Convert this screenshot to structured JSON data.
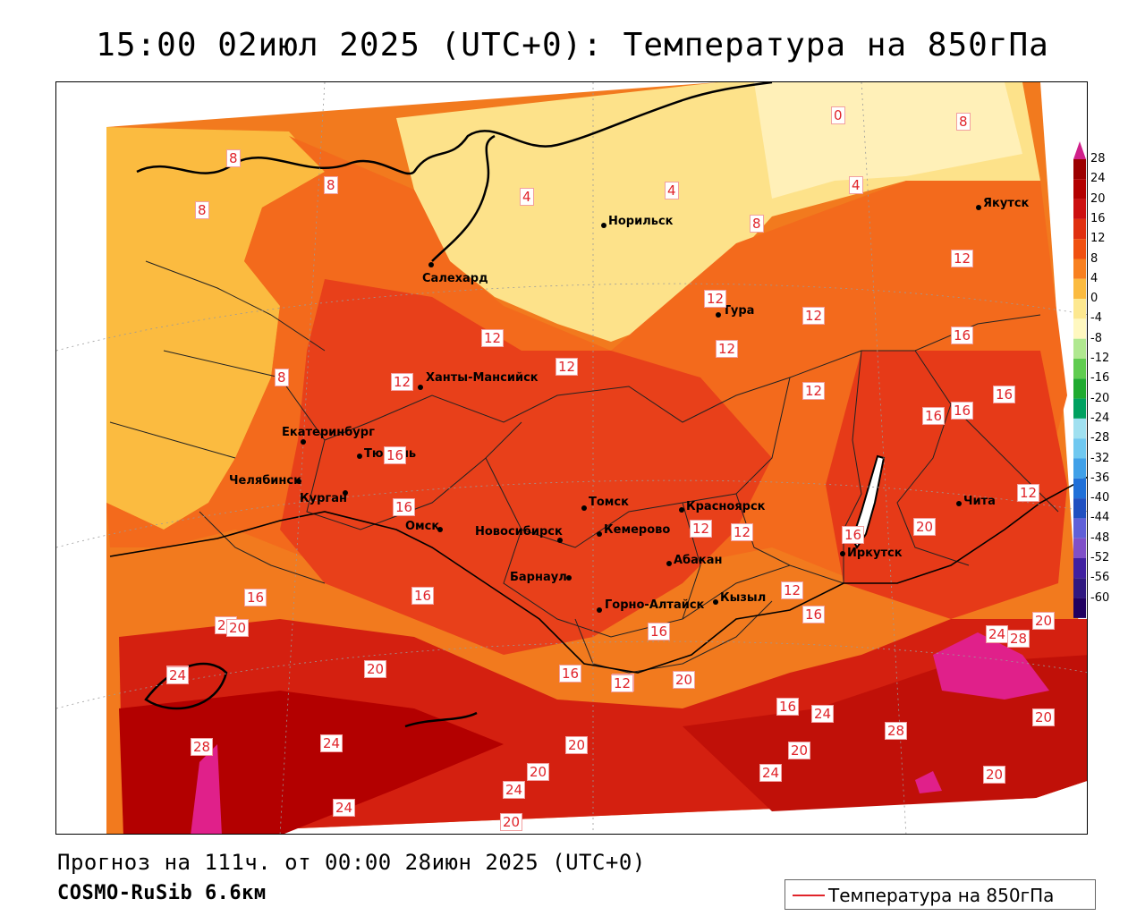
{
  "title": "15:00 02июл 2025 (UTC+0): Температура на 850гПа",
  "footer": {
    "forecast": "Прогноз на 111ч. от 00:00 28июн 2025 (UTC+0)",
    "model": "COSMO-RuSib 6.6км"
  },
  "legend": {
    "label": "Температура на 850гПа",
    "line_color": "#e0242a"
  },
  "colorbar": {
    "levels": [
      "28",
      "24",
      "20",
      "16",
      "12",
      "8",
      "4",
      "0",
      "-4",
      "-8",
      "-12",
      "-16",
      "-20",
      "-24",
      "-28",
      "-32",
      "-36",
      "-40",
      "-44",
      "-48",
      "-52",
      "-56",
      "-60"
    ],
    "colors": [
      "#9c0000",
      "#b30000",
      "#cc1010",
      "#e03010",
      "#f05010",
      "#f88020",
      "#fbbb40",
      "#fde890",
      "#fff8c0",
      "#b0e890",
      "#60cc50",
      "#20aa30",
      "#00a060",
      "#a0e0f0",
      "#70c8f0",
      "#40a0e8",
      "#2070d8",
      "#2050c0",
      "#6060d8",
      "#8050c8",
      "#4020a0",
      "#301880",
      "#200060"
    ],
    "top_color": "#d0208a"
  },
  "cities": [
    {
      "name": "Норильск"
    },
    {
      "name": "Якутск"
    },
    {
      "name": "Салехард"
    },
    {
      "name": "Тура"
    },
    {
      "name": "Ханты-Мансийск"
    },
    {
      "name": "Екатеринбург"
    },
    {
      "name": "Тюмень"
    },
    {
      "name": "Челябинск"
    },
    {
      "name": "Курган"
    },
    {
      "name": "Омск"
    },
    {
      "name": "Новосибирск"
    },
    {
      "name": "Томск"
    },
    {
      "name": "Красноярск"
    },
    {
      "name": "Кемерово"
    },
    {
      "name": "Абакан"
    },
    {
      "name": "Барнаул"
    },
    {
      "name": "Горно-Алтайск"
    },
    {
      "name": "Кызыл"
    },
    {
      "name": "Иркутск"
    },
    {
      "name": "Чита"
    }
  ],
  "isotherm_labels": [
    "0",
    "8",
    "4",
    "4",
    "4",
    "8",
    "8",
    "8",
    "8",
    "12",
    "12",
    "12",
    "12",
    "12",
    "12",
    "16",
    "16",
    "16",
    "16",
    "12",
    "8",
    "12",
    "12",
    "16",
    "16",
    "20",
    "12",
    "12",
    "16",
    "16",
    "16",
    "12",
    "16",
    "16",
    "20",
    "20",
    "24",
    "28",
    "20",
    "24",
    "20",
    "24",
    "28",
    "24",
    "16",
    "24",
    "20",
    "20",
    "16",
    "16",
    "24",
    "20",
    "20",
    "28",
    "20",
    "24",
    "12",
    "24",
    "20",
    "24",
    "20"
  ]
}
